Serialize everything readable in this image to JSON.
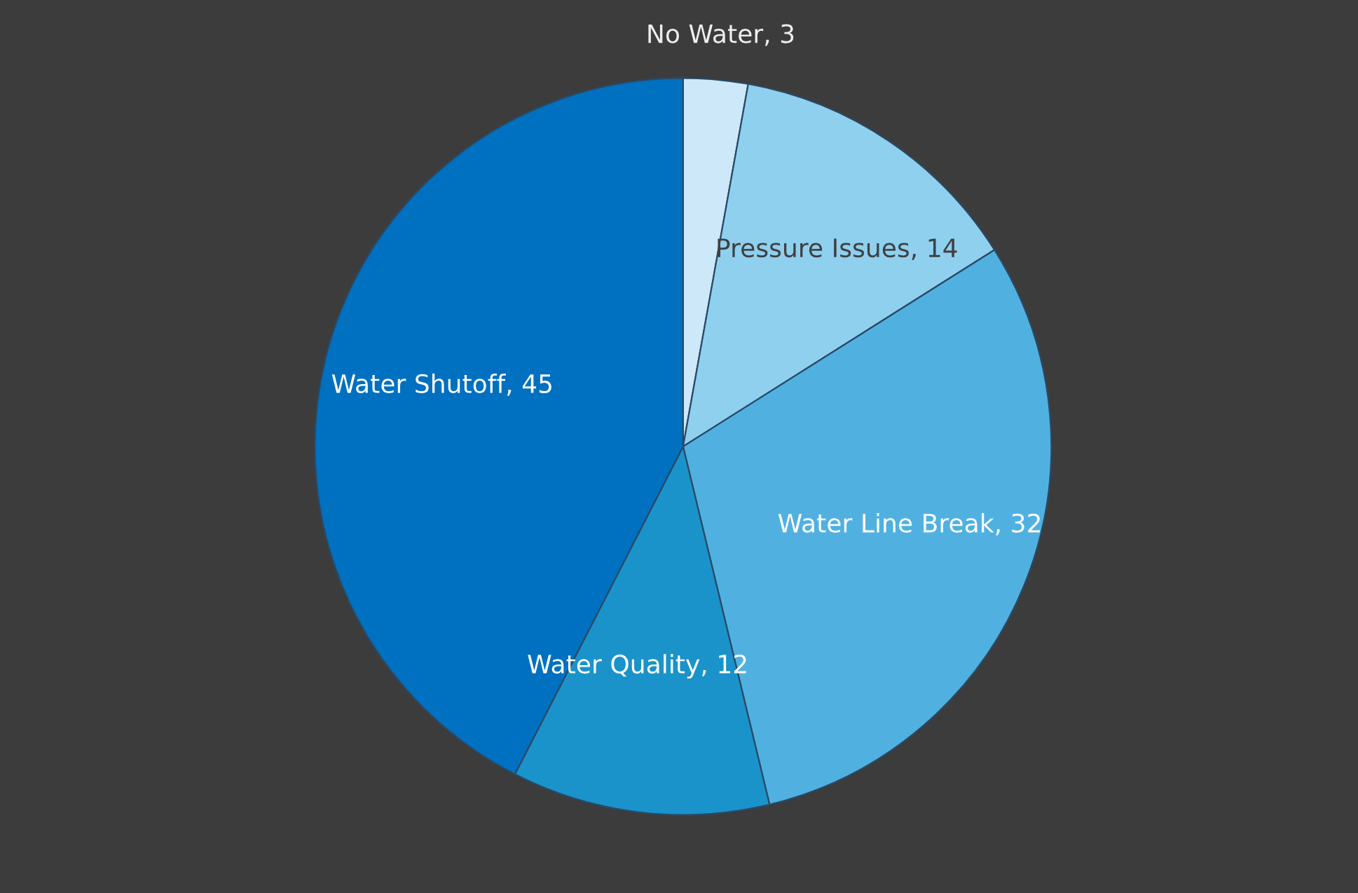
{
  "chart_data": {
    "type": "pie",
    "categories": [
      "No Water",
      "Pressure Issues",
      "Water Line Break",
      "Water Quality",
      "Water Shutoff"
    ],
    "values": [
      3,
      14,
      32,
      12,
      45
    ],
    "colors": [
      "#cde8f8",
      "#8fd0ef",
      "#50b1e1",
      "#1a93cb",
      "#0070c0"
    ],
    "value_labels": [
      ", 3",
      ", 14",
      ", 32",
      ", 12",
      ", 45"
    ]
  }
}
